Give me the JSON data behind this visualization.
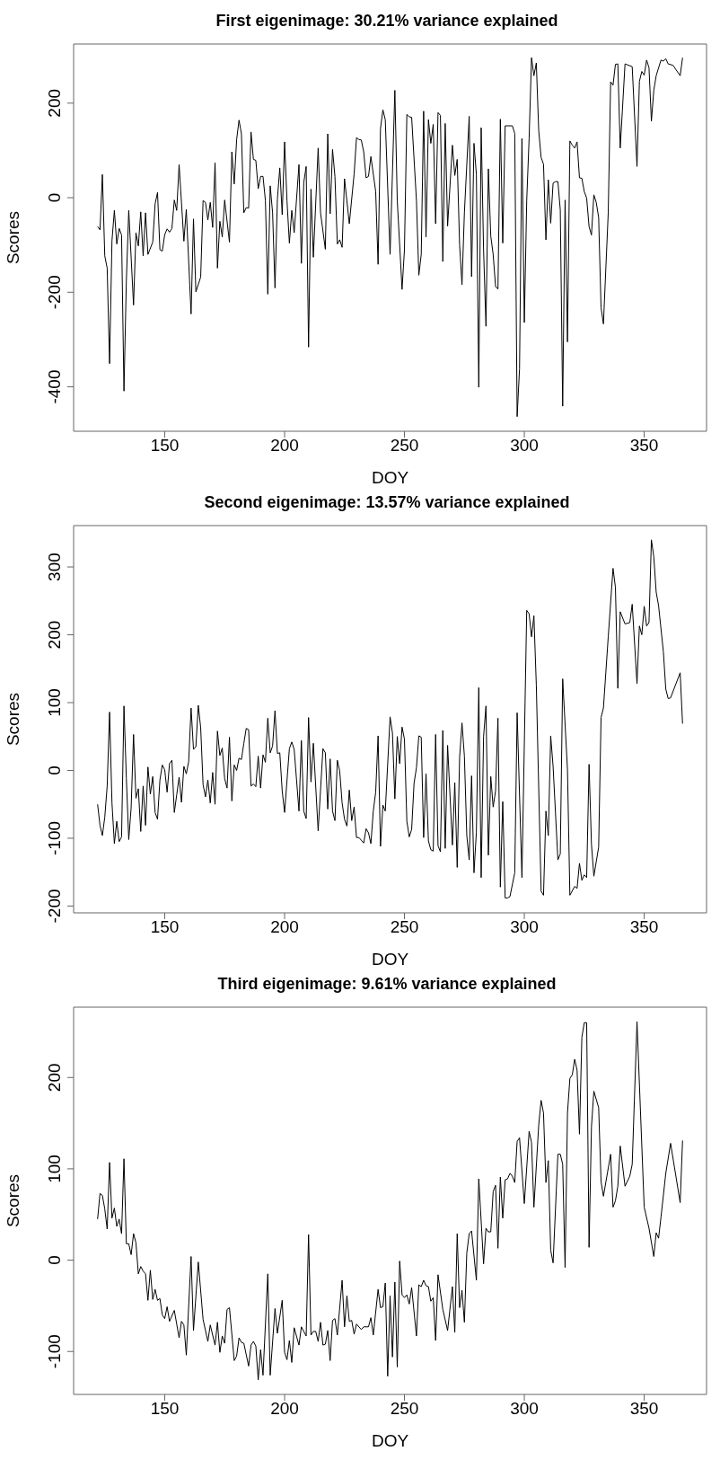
{
  "chart_data": [
    {
      "type": "line",
      "title": "First eigenimage: 30.21% variance explained",
      "xlabel": "DOY",
      "ylabel": "Scores",
      "xlim": [
        112,
        376
      ],
      "xticks": [
        150,
        200,
        250,
        300,
        350
      ],
      "ylim": [
        -494,
        325
      ],
      "yticks": [
        -400,
        -200,
        0,
        200
      ],
      "x": [
        122,
        123,
        124,
        125,
        126,
        127,
        128,
        129,
        130,
        131,
        132,
        133,
        134,
        135,
        137,
        138,
        139,
        140,
        141,
        142,
        143,
        145,
        146,
        147,
        148,
        149,
        150,
        151,
        152,
        153,
        154,
        155,
        156,
        158,
        159,
        161,
        162,
        163,
        165,
        166,
        167,
        168,
        169,
        170,
        171,
        172,
        173,
        174,
        175,
        177,
        178,
        179,
        180,
        181,
        182,
        183,
        184,
        185,
        186,
        187,
        188,
        189,
        190,
        191,
        192,
        193,
        194,
        195,
        196,
        197,
        198,
        199,
        200,
        201,
        202,
        203,
        204,
        206,
        207,
        208,
        209,
        210,
        211,
        212,
        214,
        215,
        217,
        218,
        219,
        220,
        221,
        222,
        223,
        224,
        225,
        227,
        229,
        230,
        231,
        232,
        233,
        234,
        235,
        236,
        238,
        239,
        240,
        241,
        242,
        244,
        246,
        247,
        249,
        250,
        251,
        252,
        253,
        255,
        256,
        257,
        258,
        259,
        260,
        261,
        262,
        263,
        264,
        265,
        266,
        267,
        268,
        270,
        271,
        272,
        273,
        274,
        275,
        277,
        278,
        279,
        280,
        281,
        282,
        283,
        284,
        285,
        286,
        287,
        288,
        289,
        290,
        291,
        292,
        295,
        296,
        297,
        298,
        299,
        300,
        301,
        302,
        303,
        304,
        305,
        306,
        307,
        308,
        309,
        310,
        311,
        312,
        313,
        314,
        315,
        316,
        317,
        318,
        319,
        320,
        321,
        322,
        323,
        324,
        325,
        326,
        327,
        328,
        329,
        330,
        331,
        332,
        333,
        335,
        336,
        337,
        338,
        339,
        340,
        342,
        345,
        347,
        348,
        349,
        350,
        351,
        352,
        353,
        354,
        355,
        357,
        358,
        359,
        360,
        362,
        365,
        366
      ],
      "series": [
        {
          "color": "#000000",
          "values": [
            -61,
            -68,
            49,
            -123,
            -149,
            -351,
            -91,
            -27,
            -98,
            -65,
            -79,
            -409,
            -175,
            -27,
            -227,
            -74,
            -102,
            -30,
            -123,
            -32,
            -120,
            -94,
            -13,
            11,
            -110,
            -113,
            -78,
            -66,
            -73,
            -65,
            -5,
            -27,
            70,
            -92,
            -25,
            -246,
            -45,
            -199,
            -168,
            -6,
            -10,
            -47,
            -10,
            -63,
            74,
            -149,
            -50,
            -83,
            -5,
            -94,
            97,
            29,
            123,
            164,
            135,
            -32,
            -21,
            -22,
            139,
            81,
            79,
            19,
            45,
            45,
            -6,
            -204,
            25,
            -32,
            -191,
            -3,
            63,
            -36,
            118,
            -6,
            -96,
            -27,
            -74,
            70,
            -139,
            32,
            66,
            -316,
            18,
            -126,
            105,
            -32,
            -109,
            135,
            -34,
            102,
            45,
            -98,
            -89,
            -105,
            40,
            -55,
            50,
            127,
            123,
            122,
            97,
            42,
            45,
            87,
            13,
            -141,
            146,
            186,
            165,
            -120,
            227,
            -6,
            -194,
            -110,
            176,
            171,
            170,
            -6,
            -164,
            -120,
            183,
            -83,
            165,
            115,
            155,
            -55,
            180,
            174,
            -135,
            157,
            -60,
            111,
            47,
            81,
            -100,
            -184,
            -32,
            172,
            -167,
            115,
            49,
            -401,
            148,
            -110,
            -272,
            61,
            -81,
            -120,
            -188,
            -193,
            166,
            -96,
            152,
            152,
            136,
            -463,
            -362,
            125,
            -264,
            -6,
            126,
            296,
            258,
            285,
            142,
            85,
            71,
            -89,
            38,
            -54,
            31,
            34,
            34,
            -26,
            -441,
            -5,
            -305,
            120,
            111,
            105,
            118,
            42,
            41,
            13,
            -1,
            -61,
            -79,
            6,
            -10,
            -42,
            -233,
            -267,
            -32,
            245,
            238,
            282,
            283,
            105,
            283,
            277,
            66,
            246,
            267,
            259,
            291,
            275,
            162,
            227,
            258,
            291,
            289,
            294,
            283,
            280,
            258,
            296
          ]
        }
      ]
    },
    {
      "type": "line",
      "title": "Second eigenimage: 13.57% variance explained",
      "xlabel": "DOY",
      "ylabel": "Scores",
      "xlim": [
        112,
        376
      ],
      "xticks": [
        150,
        200,
        250,
        300,
        350
      ],
      "ylim": [
        -210,
        361
      ],
      "yticks": [
        -200,
        -100,
        0,
        100,
        200,
        300
      ],
      "x": [
        122,
        123,
        124,
        125,
        126,
        127,
        128,
        129,
        130,
        131,
        132,
        133,
        134,
        135,
        136,
        137,
        138,
        139,
        140,
        141,
        142,
        143,
        144,
        145,
        146,
        147,
        148,
        149,
        150,
        151,
        152,
        153,
        154,
        155,
        156,
        157,
        158,
        159,
        160,
        161,
        162,
        163,
        164,
        165,
        166,
        167,
        168,
        169,
        170,
        171,
        172,
        173,
        174,
        175,
        176,
        177,
        178,
        179,
        180,
        181,
        182,
        183,
        184,
        185,
        186,
        187,
        188,
        189,
        190,
        191,
        192,
        193,
        194,
        195,
        196,
        197,
        198,
        199,
        200,
        202,
        203,
        204,
        206,
        207,
        208,
        209,
        210,
        211,
        212,
        214,
        216,
        217,
        218,
        219,
        220,
        221,
        222,
        223,
        224,
        225,
        226,
        227,
        228,
        229,
        230,
        231,
        233,
        234,
        235,
        236,
        237,
        238,
        239,
        240,
        241,
        242,
        244,
        245,
        246,
        247,
        248,
        249,
        250,
        251,
        252,
        253,
        254,
        255,
        256,
        257,
        258,
        259,
        260,
        261,
        262,
        263,
        264,
        265,
        266,
        267,
        268,
        270,
        271,
        272,
        273,
        274,
        275,
        276,
        277,
        278,
        279,
        280,
        281,
        282,
        283,
        284,
        285,
        286,
        287,
        288,
        289,
        290,
        291,
        292,
        293,
        294,
        296,
        297,
        299,
        301,
        302,
        303,
        304,
        305,
        307,
        308,
        309,
        310,
        311,
        312,
        314,
        315,
        316,
        318,
        319,
        321,
        322,
        323,
        324,
        325,
        326,
        327,
        328,
        329,
        331,
        332,
        333,
        335,
        337,
        338,
        339,
        340,
        342,
        344,
        345,
        347,
        348,
        349,
        350,
        351,
        352,
        353,
        354,
        355,
        356,
        358,
        359,
        360,
        361,
        365,
        366
      ],
      "series": [
        {
          "color": "#000000",
          "values": [
            -50,
            -81,
            -96,
            -69,
            -23,
            86,
            -48,
            -108,
            -75,
            -105,
            -98,
            95,
            -12,
            -102,
            -55,
            53,
            -41,
            -27,
            -90,
            -23,
            -81,
            5,
            -35,
            -9,
            -62,
            -72,
            -14,
            8,
            1,
            -32,
            10,
            15,
            -62,
            -36,
            -10,
            -47,
            6,
            -5,
            13,
            92,
            31,
            35,
            96,
            63,
            -21,
            -39,
            -14,
            -48,
            -3,
            -50,
            58,
            22,
            33,
            -12,
            -26,
            49,
            -45,
            8,
            0,
            18,
            16,
            40,
            62,
            60,
            -23,
            -20,
            -24,
            21,
            -26,
            23,
            12,
            77,
            26,
            36,
            88,
            25,
            26,
            -30,
            -62,
            32,
            42,
            31,
            -60,
            44,
            -60,
            -71,
            78,
            -17,
            40,
            -89,
            32,
            26,
            -57,
            17,
            -60,
            -74,
            15,
            -1,
            -48,
            -72,
            -82,
            -29,
            -74,
            -54,
            -99,
            -99,
            -107,
            -86,
            -92,
            -108,
            -60,
            -32,
            51,
            -112,
            -51,
            -60,
            79,
            55,
            -42,
            50,
            10,
            64,
            46,
            -75,
            -98,
            -87,
            -19,
            4,
            51,
            49,
            -99,
            -5,
            -104,
            -117,
            -119,
            53,
            -111,
            -120,
            59,
            -115,
            37,
            -110,
            -18,
            -143,
            19,
            70,
            21,
            -96,
            -132,
            -8,
            -151,
            -91,
            122,
            -158,
            50,
            95,
            -125,
            -9,
            -54,
            -30,
            77,
            -172,
            -46,
            -188,
            -188,
            -186,
            -151,
            85,
            -158,
            236,
            231,
            197,
            228,
            126,
            -178,
            -184,
            -60,
            -96,
            51,
            6,
            -132,
            -123,
            135,
            1,
            -184,
            -171,
            -174,
            -137,
            -162,
            -154,
            -158,
            9,
            -109,
            -156,
            -113,
            78,
            92,
            197,
            298,
            270,
            121,
            234,
            216,
            218,
            245,
            128,
            213,
            200,
            242,
            213,
            218,
            340,
            315,
            263,
            243,
            175,
            120,
            106,
            107,
            144,
            69
          ]
        }
      ]
    },
    {
      "type": "line",
      "title": "Third eigenimage: 9.61% variance explained",
      "xlabel": "DOY",
      "ylabel": "Scores",
      "xlim": [
        112,
        376
      ],
      "xticks": [
        150,
        200,
        250,
        300,
        350
      ],
      "ylim": [
        -147,
        277
      ],
      "yticks": [
        -100,
        0,
        100,
        200
      ],
      "x": [
        122,
        123,
        124,
        125,
        126,
        127,
        128,
        129,
        130,
        131,
        132,
        133,
        134,
        135,
        136,
        137,
        138,
        139,
        140,
        141,
        142,
        143,
        144,
        145,
        146,
        147,
        148,
        149,
        150,
        151,
        152,
        154,
        156,
        157,
        158,
        159,
        161,
        162,
        164,
        166,
        168,
        169,
        171,
        172,
        173,
        174,
        175,
        176,
        177,
        179,
        180,
        181,
        182,
        183,
        185,
        186,
        187,
        188,
        189,
        190,
        191,
        193,
        194,
        196,
        197,
        199,
        200,
        201,
        202,
        203,
        204,
        206,
        207,
        209,
        210,
        211,
        212,
        213,
        214,
        215,
        216,
        217,
        218,
        219,
        220,
        221,
        222,
        224,
        225,
        226,
        227,
        228,
        229,
        230,
        232,
        233,
        235,
        236,
        237,
        239,
        240,
        241,
        242,
        243,
        244,
        245,
        246,
        247,
        248,
        249,
        250,
        251,
        252,
        253,
        255,
        256,
        257,
        258,
        259,
        260,
        261,
        262,
        263,
        264,
        266,
        268,
        270,
        271,
        272,
        273,
        274,
        275,
        276,
        277,
        278,
        280,
        281,
        283,
        284,
        285,
        286,
        287,
        288,
        289,
        290,
        291,
        292,
        293,
        294,
        295,
        296,
        297,
        298,
        300,
        302,
        303,
        304,
        306,
        307,
        308,
        309,
        310,
        311,
        312,
        314,
        315,
        316,
        317,
        318,
        319,
        320,
        321,
        322,
        323,
        324,
        325,
        326,
        327,
        328,
        329,
        331,
        332,
        333,
        336,
        337,
        338,
        339,
        340,
        342,
        344,
        345,
        347,
        350,
        352,
        354,
        355,
        356,
        357,
        359,
        361,
        365,
        366
      ],
      "series": [
        {
          "color": "#000000",
          "values": [
            45,
            73,
            71,
            56,
            34,
            107,
            46,
            57,
            37,
            45,
            29,
            111,
            18,
            18,
            6,
            29,
            19,
            -15,
            -7,
            -12,
            -15,
            -44,
            -11,
            -43,
            -32,
            -44,
            -42,
            -60,
            -64,
            -51,
            -67,
            -55,
            -85,
            -67,
            -71,
            -104,
            4,
            -77,
            -2,
            -65,
            -89,
            -71,
            -93,
            -68,
            -101,
            -83,
            -91,
            -54,
            -52,
            -110,
            -105,
            -85,
            -90,
            -91,
            -116,
            -93,
            -89,
            -94,
            -131,
            -98,
            -126,
            -15,
            -126,
            -53,
            -80,
            -44,
            -101,
            -109,
            -88,
            -112,
            -74,
            -93,
            -73,
            -83,
            28,
            -82,
            -78,
            -78,
            -89,
            -68,
            -93,
            -92,
            -77,
            -110,
            -66,
            -64,
            -82,
            -22,
            -73,
            -39,
            -67,
            -66,
            -81,
            -70,
            -76,
            -73,
            -73,
            -63,
            -82,
            -32,
            -52,
            -51,
            -25,
            -127,
            -39,
            -106,
            -24,
            -117,
            -1,
            -38,
            -41,
            -38,
            -48,
            -30,
            -83,
            -27,
            -29,
            -22,
            -28,
            -29,
            -45,
            -41,
            -88,
            -16,
            -54,
            -77,
            -29,
            -79,
            29,
            -52,
            -33,
            -68,
            8,
            29,
            32,
            -22,
            89,
            -4,
            35,
            31,
            31,
            75,
            82,
            13,
            91,
            46,
            88,
            89,
            95,
            92,
            85,
            130,
            134,
            62,
            141,
            129,
            58,
            148,
            175,
            161,
            85,
            109,
            11,
            -3,
            116,
            116,
            105,
            -8,
            161,
            199,
            203,
            220,
            208,
            138,
            244,
            260,
            260,
            14,
            146,
            185,
            167,
            86,
            70,
            116,
            58,
            65,
            81,
            125,
            81,
            92,
            105,
            261,
            58,
            35,
            4,
            30,
            24,
            47,
            95,
            128,
            63,
            131
          ]
        }
      ]
    }
  ]
}
